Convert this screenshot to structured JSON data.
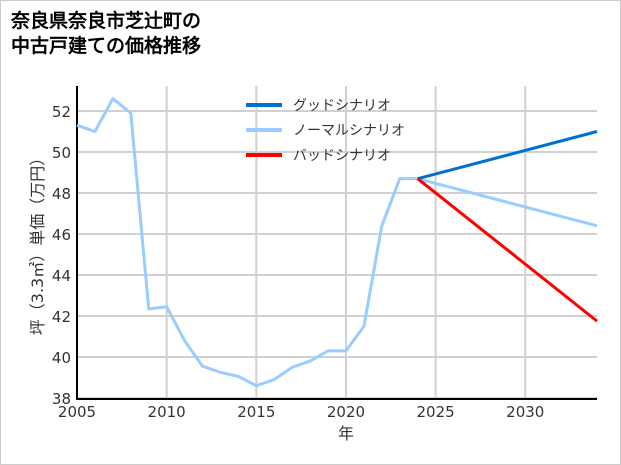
{
  "chart_data": {
    "type": "line",
    "title": "奈良県奈良市芝辻町の\n中古戸建ての価格推移",
    "xlabel": "年",
    "ylabel": "坪（3.3㎡）単価（万円）",
    "xlim": [
      2005,
      2034
    ],
    "ylim": [
      38,
      53
    ],
    "xticks": [
      2005,
      2010,
      2015,
      2020,
      2025,
      2030
    ],
    "yticks": [
      38,
      40,
      42,
      44,
      46,
      48,
      50,
      52
    ],
    "grid": true,
    "legend_position": "top-center",
    "series": [
      {
        "name": "グッドシナリオ",
        "color": "#0070d0",
        "x": [
          2024,
          2034
        ],
        "y": [
          48.7,
          51.0
        ]
      },
      {
        "name": "ノーマルシナリオ",
        "color": "#99ccff",
        "x": [
          2005,
          2006,
          2007,
          2008,
          2009,
          2010,
          2011,
          2012,
          2013,
          2014,
          2015,
          2016,
          2017,
          2018,
          2019,
          2020,
          2021,
          2022,
          2023,
          2024,
          2034
        ],
        "y": [
          51.3,
          51.0,
          52.6,
          51.9,
          42.35,
          42.45,
          40.8,
          39.55,
          39.25,
          39.05,
          38.6,
          38.9,
          39.5,
          39.8,
          40.3,
          40.3,
          41.5,
          46.4,
          48.7,
          48.7,
          46.4
        ]
      },
      {
        "name": "バッドシナリオ",
        "color": "#ff0000",
        "x": [
          2024,
          2034
        ],
        "y": [
          48.7,
          41.75
        ]
      }
    ]
  }
}
